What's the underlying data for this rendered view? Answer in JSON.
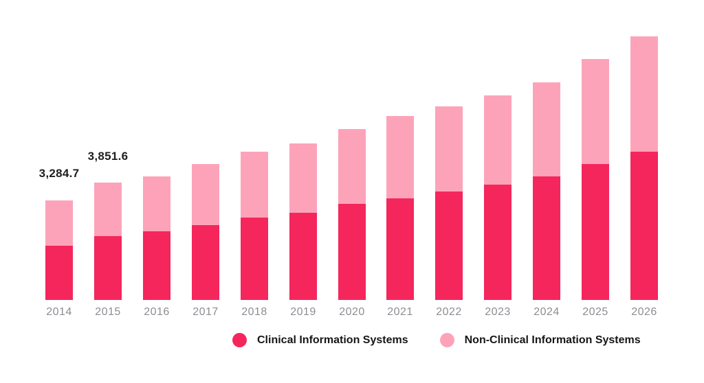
{
  "page": {
    "background": "#FFFFFF"
  },
  "colors": {
    "clinical": "#F4265C",
    "non_clinical": "#FDA3B9",
    "axis_label": "#8B8D92",
    "data_label": "#1E1E1E",
    "legend_text": "#161616"
  },
  "chart_data": {
    "type": "bar",
    "stacked": true,
    "title": "",
    "xlabel": "",
    "ylabel": "",
    "categories": [
      "2014",
      "2015",
      "2016",
      "2017",
      "2018",
      "2019",
      "2020",
      "2021",
      "2022",
      "2023",
      "2024",
      "2025",
      "2026"
    ],
    "series": [
      {
        "name": "Clinical Information Systems",
        "color": "#F4265C",
        "values": [
          1790,
          2090,
          2260,
          2460,
          2710,
          2870,
          3150,
          3350,
          3560,
          3790,
          4060,
          4470,
          4880
        ]
      },
      {
        "name": "Non-Clinical Information Systems",
        "color": "#FDA3B9",
        "values": [
          1494.7,
          1761.6,
          1800,
          2010,
          2170,
          2280,
          2480,
          2690,
          2800,
          2940,
          3100,
          3460,
          3780
        ]
      }
    ],
    "totals": [
      3284.7,
      3851.6,
      4060,
      4470,
      4880,
      5150,
      5630,
      6040,
      6360,
      6730,
      7160,
      7930,
      8660
    ],
    "data_labels": [
      {
        "category_index": 0,
        "text": "3,284.7"
      },
      {
        "category_index": 1,
        "text": "3,851.6"
      }
    ],
    "ylim": [
      0,
      8800
    ],
    "grid": false,
    "axes_visible": false,
    "legend_position": "bottom"
  },
  "legend": {
    "items": [
      {
        "label": "Clinical Information Systems",
        "color": "#F4265C"
      },
      {
        "label": "Non-Clinical Information Systems",
        "color": "#FDA3B9"
      }
    ]
  }
}
